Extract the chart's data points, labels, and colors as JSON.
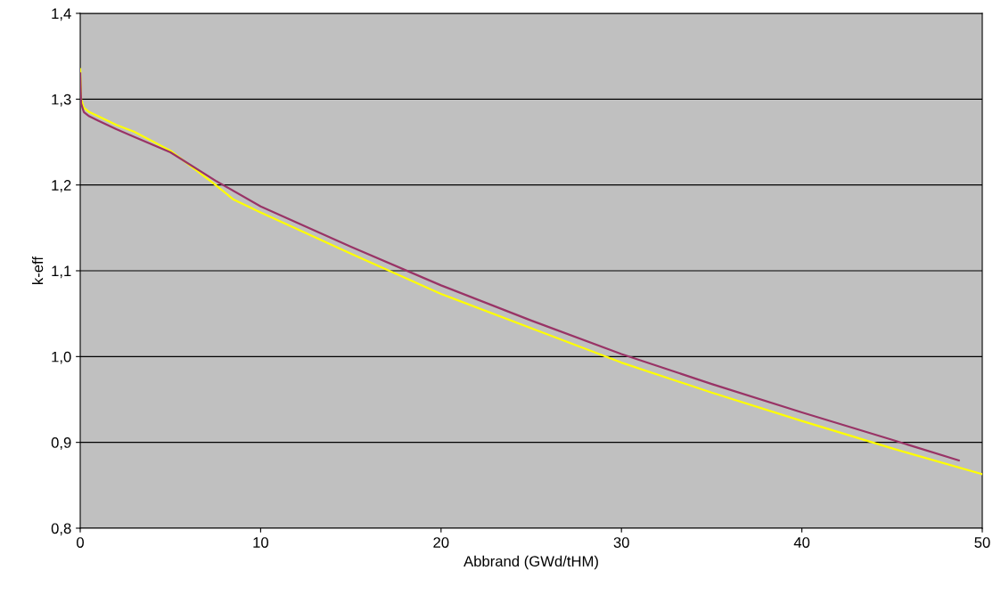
{
  "chart_data": {
    "type": "line",
    "xlabel": "Abbrand (GWd/tHM)",
    "ylabel": "k-eff",
    "series": [
      {
        "color": "#ffff00",
        "x": [
          0,
          0.05,
          0.2,
          0.5,
          1,
          2,
          3,
          5,
          7.5,
          8.5,
          10,
          15,
          20,
          25,
          30,
          35,
          40,
          45,
          50
        ],
        "values": [
          1.335,
          1.3,
          1.29,
          1.285,
          1.28,
          1.27,
          1.262,
          1.24,
          1.2,
          1.183,
          1.168,
          1.12,
          1.073,
          1.033,
          0.993,
          0.958,
          0.925,
          0.893,
          0.863
        ]
      },
      {
        "color": "#993366",
        "x": [
          0,
          0.05,
          0.2,
          0.5,
          1,
          2,
          3,
          5,
          7.5,
          10,
          15,
          20,
          25,
          30,
          35,
          40,
          45,
          48.7
        ],
        "values": [
          1.33,
          1.295,
          1.285,
          1.28,
          1.275,
          1.265,
          1.256,
          1.238,
          1.205,
          1.175,
          1.128,
          1.083,
          1.042,
          1.003,
          0.968,
          0.935,
          0.903,
          0.879
        ]
      }
    ],
    "xlim": [
      0,
      50
    ],
    "xticks": [
      0,
      10,
      20,
      30,
      40,
      50
    ],
    "ylim": [
      0.8,
      1.4
    ],
    "yticks": [
      {
        "value": 0.8,
        "label": "0,8"
      },
      {
        "value": 0.9,
        "label": "0,9"
      },
      {
        "value": 1.0,
        "label": "1,0"
      },
      {
        "value": 1.1,
        "label": "1,1"
      },
      {
        "value": 1.2,
        "label": "1,2"
      },
      {
        "value": 1.3,
        "label": "1,3"
      },
      {
        "value": 1.4,
        "label": "1,4"
      }
    ],
    "grid": "y",
    "line_style": "solid",
    "marker": "none"
  }
}
